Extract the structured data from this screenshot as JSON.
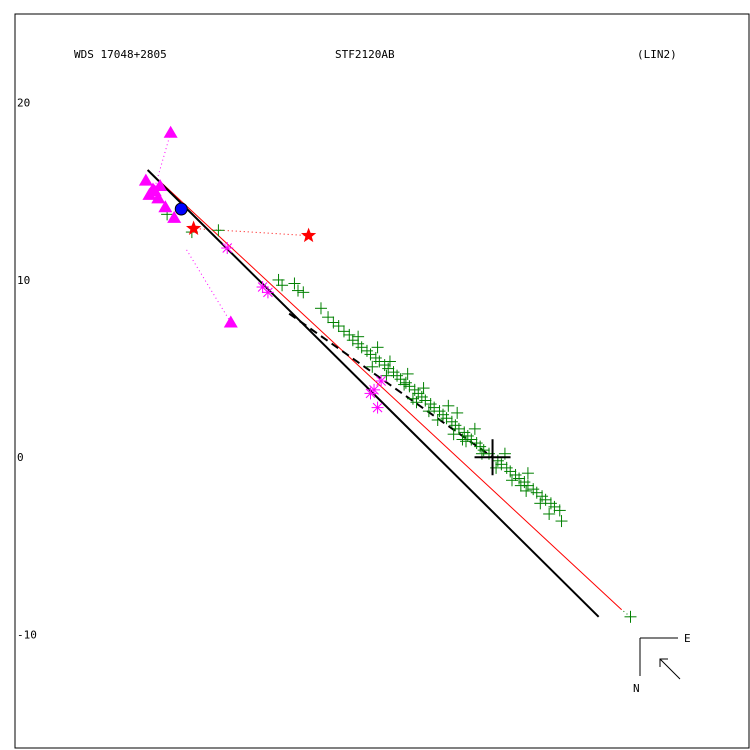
{
  "header": {
    "wds_id": "WDS 17048+2805",
    "pair_name": "STF2120AB",
    "orbit_code": "(LIN2)"
  },
  "compass": {
    "east_label": "E",
    "north_label": "N"
  },
  "colors": {
    "background": "#ffffff",
    "frame": "#000000",
    "observation_green": "#008000",
    "highlight_magenta": "#ff00ff",
    "rejected_red": "#ff0000",
    "first_point_blue": "#0000ff",
    "ephemeris_red_line": "#ff0000"
  },
  "chart_data": {
    "type": "scatter",
    "title": "",
    "xlabel": "",
    "ylabel": "",
    "y_ticks": [
      20,
      10,
      0,
      -10
    ],
    "x_ticks": [],
    "grid": false,
    "view": {
      "x_min": -27,
      "x_max": 14.5,
      "y_min": -16.4,
      "y_max": 25
    },
    "primary_marker": [
      0,
      0
    ],
    "linear_fit": {
      "from": [
        -19.5,
        16.2
      ],
      "to": [
        6.0,
        -9.0
      ]
    },
    "ephemeris_line": {
      "from": [
        -19.5,
        16.2
      ],
      "to": [
        7.3,
        -8.6
      ]
    },
    "projection_dashed": {
      "from": [
        -11.5,
        8.1
      ],
      "to": [
        0,
        0
      ]
    },
    "series": [
      {
        "marker": "plus",
        "color": "#008000",
        "points": [
          [
            -18.4,
            13.7
          ],
          [
            -15.5,
            12.8
          ],
          [
            -12.1,
            10.0
          ],
          [
            -11.2,
            9.8
          ],
          [
            -11.9,
            9.7
          ],
          [
            -11.0,
            9.4
          ],
          [
            -10.7,
            9.3
          ],
          [
            -9.7,
            8.4
          ],
          [
            -9.3,
            7.9
          ],
          [
            -9.0,
            7.6
          ],
          [
            -8.7,
            7.4
          ],
          [
            -8.4,
            7.1
          ],
          [
            -8.1,
            6.9
          ],
          [
            -7.9,
            6.6
          ],
          [
            -7.6,
            6.4
          ],
          [
            -7.4,
            6.2
          ],
          [
            -7.1,
            6.0
          ],
          [
            -6.9,
            5.8
          ],
          [
            -6.6,
            5.6
          ],
          [
            -6.4,
            5.4
          ],
          [
            -6.1,
            5.2
          ],
          [
            -5.9,
            5.0
          ],
          [
            -5.6,
            4.8
          ],
          [
            -5.4,
            4.6
          ],
          [
            -5.2,
            4.4
          ],
          [
            -4.9,
            4.2
          ],
          [
            -4.7,
            4.0
          ],
          [
            -4.4,
            3.8
          ],
          [
            -4.2,
            3.6
          ],
          [
            -4.0,
            3.4
          ],
          [
            -3.8,
            3.2
          ],
          [
            -3.5,
            3.0
          ],
          [
            -3.3,
            2.8
          ],
          [
            -3.0,
            2.6
          ],
          [
            -2.8,
            2.4
          ],
          [
            -2.6,
            2.2
          ],
          [
            -2.3,
            2.0
          ],
          [
            -2.1,
            1.8
          ],
          [
            -1.9,
            1.6
          ],
          [
            -1.6,
            1.4
          ],
          [
            -1.4,
            1.2
          ],
          [
            -1.2,
            1.0
          ],
          [
            -0.9,
            0.8
          ],
          [
            -0.7,
            0.6
          ],
          [
            -0.5,
            0.4
          ],
          [
            -0.2,
            0.2
          ],
          [
            0.0,
            0.0
          ],
          [
            0.3,
            -0.2
          ],
          [
            0.5,
            -0.4
          ],
          [
            0.8,
            -0.6
          ],
          [
            1.0,
            -0.8
          ],
          [
            1.3,
            -1.0
          ],
          [
            1.5,
            -1.2
          ],
          [
            1.8,
            -1.4
          ],
          [
            2.0,
            -1.6
          ],
          [
            2.3,
            -1.8
          ],
          [
            2.5,
            -2.0
          ],
          [
            2.8,
            -2.2
          ],
          [
            3.0,
            -2.4
          ],
          [
            3.3,
            -2.6
          ],
          [
            3.5,
            -2.8
          ],
          [
            3.8,
            -3.0
          ],
          [
            -6.8,
            5.1
          ],
          [
            -6.0,
            4.6
          ],
          [
            -5.0,
            4.1
          ],
          [
            -4.5,
            3.3
          ],
          [
            -3.6,
            2.6
          ],
          [
            -3.1,
            2.1
          ],
          [
            -2.2,
            1.3
          ],
          [
            -1.5,
            0.9
          ],
          [
            -0.6,
            0.2
          ],
          [
            0.2,
            -0.6
          ],
          [
            1.1,
            -1.3
          ],
          [
            1.9,
            -1.9
          ],
          [
            2.7,
            -2.6
          ],
          [
            -2.0,
            2.5
          ],
          [
            -4.8,
            4.7
          ],
          [
            -5.8,
            5.4
          ],
          [
            -7.6,
            6.8
          ],
          [
            -3.9,
            3.9
          ],
          [
            -2.5,
            2.9
          ],
          [
            -1.0,
            1.6
          ],
          [
            0.7,
            0.2
          ],
          [
            2.0,
            -0.9
          ],
          [
            3.9,
            -3.6
          ],
          [
            -6.5,
            6.2
          ],
          [
            -4.3,
            3.1
          ],
          [
            -1.7,
            1.0
          ],
          [
            1.6,
            -1.6
          ],
          [
            3.2,
            -3.2
          ],
          [
            -17.0,
            12.7
          ],
          [
            7.8,
            -9.0
          ]
        ]
      },
      {
        "marker": "asterisk",
        "color": "#ff00ff",
        "points": [
          [
            -15.0,
            11.8
          ],
          [
            -13.0,
            9.6
          ],
          [
            -12.7,
            9.3
          ],
          [
            -6.7,
            3.8
          ],
          [
            -6.9,
            3.6
          ],
          [
            -6.3,
            4.3
          ],
          [
            -6.5,
            2.8
          ]
        ]
      },
      {
        "marker": "triangle",
        "color": "#ff00ff",
        "points": [
          [
            -18.2,
            18.3
          ],
          [
            -18.8,
            15.3
          ],
          [
            -19.2,
            15.1
          ],
          [
            -19.4,
            14.8
          ],
          [
            -18.9,
            14.6
          ],
          [
            -18.5,
            14.1
          ],
          [
            -18.0,
            13.5
          ],
          [
            -14.8,
            7.6
          ],
          [
            -19.6,
            15.6
          ],
          [
            -19.1,
            15.0
          ]
        ]
      },
      {
        "marker": "star",
        "color": "#ff0000",
        "points": [
          [
            -16.9,
            12.9
          ],
          [
            -10.4,
            12.5
          ]
        ]
      },
      {
        "marker": "circle",
        "color": "#0000ff",
        "points": [
          [
            -17.6,
            14.0
          ]
        ]
      }
    ],
    "residual_segments": [
      [
        [
          -18.2,
          18.3
        ],
        [
          -19.1,
          15.2
        ]
      ],
      [
        [
          -14.8,
          7.6
        ],
        [
          -17.3,
          11.7
        ]
      ],
      [
        [
          -10.4,
          12.5
        ],
        [
          -16.9,
          12.9
        ]
      ],
      [
        [
          7.8,
          -9.0
        ],
        [
          7.3,
          -8.6
        ]
      ],
      [
        [
          -15.0,
          11.8
        ],
        [
          -15.3,
          12.4
        ]
      ]
    ]
  }
}
